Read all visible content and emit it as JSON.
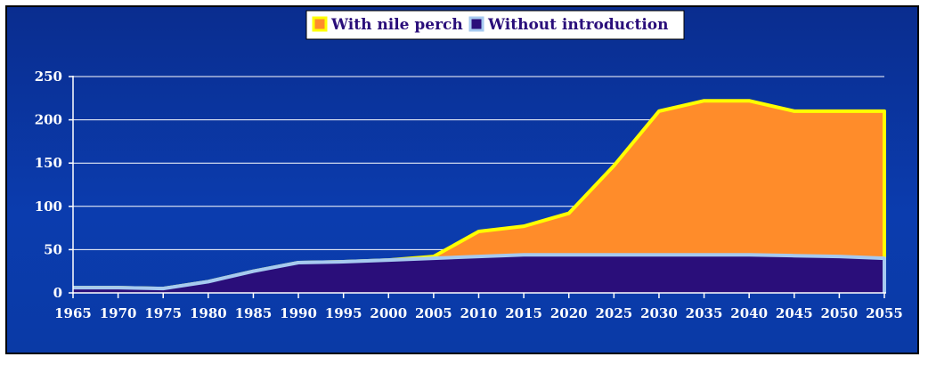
{
  "chart_data": {
    "type": "area",
    "title": "",
    "xlabel": "",
    "ylabel": "",
    "x": [
      1965,
      1970,
      1975,
      1980,
      1985,
      1990,
      1995,
      2000,
      2005,
      2010,
      2015,
      2020,
      2025,
      2030,
      2035,
      2040,
      2045,
      2050,
      2055
    ],
    "x_ticks": [
      "1965",
      "1970",
      "1975",
      "1980",
      "1985",
      "1990",
      "1995",
      "2000",
      "2005",
      "2010",
      "2015",
      "2020",
      "2025",
      "2030",
      "2035",
      "2040",
      "2045",
      "2050",
      "2055"
    ],
    "y_ticks": [
      "0",
      "50",
      "100",
      "150",
      "200",
      "250"
    ],
    "ylim": [
      0,
      250
    ],
    "grid": true,
    "legend_position": "top-center",
    "series": [
      {
        "name": "With nile perch",
        "fill_color": "#ff8c2a",
        "edge_color": "#ffff00",
        "values": [
          6,
          6,
          5,
          13,
          25,
          35,
          36,
          38,
          42,
          71,
          77,
          92,
          147,
          210,
          222,
          222,
          210,
          210,
          210
        ]
      },
      {
        "name": "Without introduction",
        "fill_color": "#2a0e7a",
        "edge_color": "#a6caf0",
        "values": [
          6,
          6,
          5,
          13,
          25,
          35,
          36,
          38,
          40,
          42,
          44,
          44,
          44,
          44,
          44,
          44,
          43,
          42,
          40
        ]
      }
    ]
  }
}
